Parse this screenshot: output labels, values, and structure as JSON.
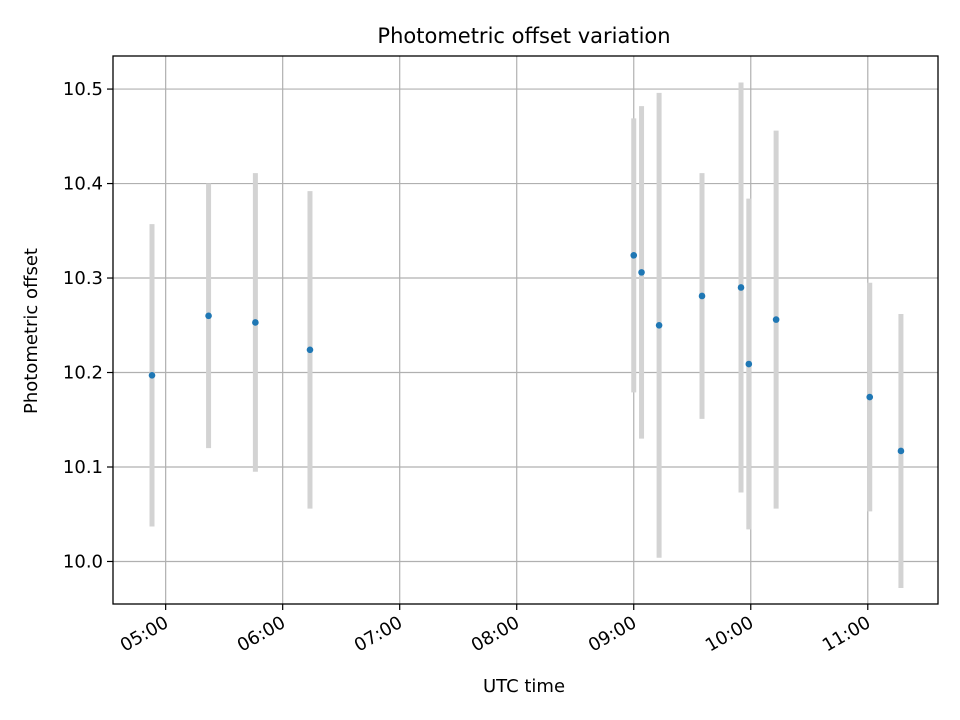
{
  "chart_data": {
    "type": "scatter",
    "title": "Photometric offset variation",
    "xlabel": "UTC time",
    "ylabel": "Photometric offset",
    "x_unit": "time",
    "xlim": [
      "04:33",
      "11:36"
    ],
    "ylim": [
      9.955,
      10.535
    ],
    "grid": true,
    "x_ticks": [
      "05:00",
      "06:00",
      "07:00",
      "08:00",
      "09:00",
      "10:00",
      "11:00"
    ],
    "y_ticks": [
      "10.0",
      "10.1",
      "10.2",
      "10.3",
      "10.4",
      "10.5"
    ],
    "series": [
      {
        "marker_color": "#1f77b4",
        "errorbar_color": "#d3d3d3",
        "points": [
          {
            "x": "04:53",
            "y": 10.197,
            "err": 0.16
          },
          {
            "x": "05:22",
            "y": 10.26,
            "err": 0.14
          },
          {
            "x": "05:46",
            "y": 10.253,
            "err": 0.158
          },
          {
            "x": "06:14",
            "y": 10.224,
            "err": 0.168
          },
          {
            "x": "09:00",
            "y": 10.324,
            "err": 0.145
          },
          {
            "x": "09:04",
            "y": 10.306,
            "err": 0.176
          },
          {
            "x": "09:13",
            "y": 10.25,
            "err": 0.246
          },
          {
            "x": "09:35",
            "y": 10.281,
            "err": 0.13
          },
          {
            "x": "09:55",
            "y": 10.29,
            "err": 0.217
          },
          {
            "x": "09:59",
            "y": 10.209,
            "err": 0.175
          },
          {
            "x": "10:13",
            "y": 10.256,
            "err": 0.2
          },
          {
            "x": "11:01",
            "y": 10.174,
            "err": 0.121
          },
          {
            "x": "11:17",
            "y": 10.117,
            "err": 0.145
          }
        ]
      }
    ]
  }
}
